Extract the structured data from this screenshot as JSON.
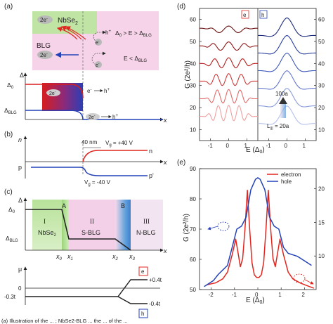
{
  "figure": {
    "panel_labels": {
      "a": "(a)",
      "b": "(b)",
      "c": "(c)",
      "d": "(d)",
      "e": "(e)"
    },
    "caption_fragment": "(a) Illustration of the ... ; NbSe2-BLG ... the ... of the ..."
  },
  "panel_a": {
    "nbse2": "NbSe",
    "nbse2_sub": "2",
    "blg": "BLG",
    "electron": "2e",
    "electron_sup": "-",
    "hole": "h",
    "hole_sup": "+",
    "e_single": "e",
    "e_single_sup": "-",
    "cond_upper": "Δ",
    "cond_upper_sub": "0",
    "cond_upper_rest": " > E > Δ",
    "cond_upper_sub2": "BLG",
    "cond_lower": "E < Δ",
    "cond_lower_sub": "BLG",
    "delta_axis": "Δ",
    "delta0": "Δ",
    "delta0_sub": "0",
    "delta_blg": "Δ",
    "delta_blg_sub": "BLG",
    "x_axis": "x",
    "colors": {
      "nbse2": "#b8e29a",
      "blg": "#f3cde6",
      "arrow_red": "#e0261f",
      "arrow_blue": "#2442b8"
    }
  },
  "panel_b": {
    "n_axis": "n",
    "width_label": "40 nm",
    "vg_pos": "V",
    "vg_pos_sub": "g",
    "vg_pos_rest": " = +40 V",
    "vg_neg": "V",
    "vg_neg_sub": "g",
    "vg_neg_rest": " = -40 V",
    "n_label": "n",
    "p_label": "p",
    "p_prime": "p'",
    "x_axis": "x"
  },
  "panel_c": {
    "delta_axis": "Δ",
    "delta0": "Δ",
    "delta0_sub": "0",
    "delta_blg": "Δ",
    "delta_blg_sub": "BLG",
    "regions": [
      {
        "tag": "A",
        "roman": "",
        "name": ""
      },
      {
        "tag": "",
        "roman": "I",
        "name": "NbSe"
      },
      {
        "tag": "",
        "roman": "II",
        "name": "S-BLG"
      },
      {
        "tag": "B",
        "roman": "",
        "name": ""
      },
      {
        "tag": "",
        "roman": "III",
        "name": "N-BLG"
      }
    ],
    "nbse2_sub": "2",
    "x_ticks": [
      "x",
      "x",
      "x",
      "x"
    ],
    "x_subs": [
      "0",
      "1",
      "2",
      "3"
    ],
    "x_axis": "x",
    "mu_axis": "μ",
    "mu_zero": "0",
    "mu_left": "-0.3t",
    "mu_upper": "+0.4t",
    "mu_lower": "-0.4t",
    "box_e": "e",
    "box_h": "h"
  },
  "panel_d": {
    "ylabel": "G (2e²/h)",
    "xlabel": "E (Δ",
    "xlabel_sub": "0",
    "xlabel_end": ")",
    "legend_e": "e",
    "legend_h": "h",
    "y_ticks": [
      "10",
      "20",
      "30",
      "40",
      "50",
      "60"
    ],
    "y_ticks_right": [
      "10",
      "20",
      "30",
      "40",
      "50",
      "60"
    ],
    "x_ticks": [
      "-1",
      "0",
      "1"
    ],
    "arrow_top": "100a",
    "arrow_bottom": "L",
    "arrow_bottom_sub": "|||",
    "arrow_bottom_rest": " = 20a"
  },
  "chart_data": {
    "type": "line",
    "title": "",
    "xlabel": "E (Δ₀)",
    "ylabel": "G (2e²/h)",
    "xlim": [
      -2.5,
      2.5
    ],
    "ylim": [
      50,
      90
    ],
    "y2lim": [
      5,
      23
    ],
    "x_ticks": [
      -2,
      -1,
      0,
      1,
      2
    ],
    "y_ticks": [
      50,
      60,
      70,
      80,
      90
    ],
    "y2_ticks": [
      10,
      15,
      20
    ],
    "legend": "top-right",
    "series": [
      {
        "name": "electron",
        "color": "#e0261f",
        "x": [
          -2.2,
          -1.8,
          -1.5,
          -1.3,
          -1.1,
          -0.95,
          -0.85,
          -0.75,
          -0.65,
          -0.55,
          -0.45,
          -0.35,
          -0.25,
          -0.15,
          -0.05,
          0.05,
          0.15,
          0.25,
          0.35,
          0.45,
          0.55,
          0.65,
          0.75,
          0.85,
          0.95,
          1.1,
          1.3,
          1.5,
          1.8,
          2.1,
          2.4
        ],
        "y": [
          5.7,
          6.0,
          6.6,
          7.6,
          10.2,
          12.5,
          10.5,
          8.4,
          9.6,
          14.0,
          19.8,
          14.0,
          9.0,
          7.2,
          6.8,
          6.8,
          7.2,
          9.0,
          14.0,
          19.8,
          14.0,
          9.6,
          8.4,
          10.5,
          12.5,
          10.2,
          7.6,
          6.6,
          6.0,
          5.6,
          5.2
        ]
      },
      {
        "name": "hole",
        "color": "#2442b8",
        "x": [
          -2.3,
          -2.1,
          -1.9,
          -1.7,
          -1.5,
          -1.3,
          -1.1,
          -0.9,
          -0.7,
          -0.5,
          -0.3,
          -0.1,
          0.0,
          0.1,
          0.3,
          0.5,
          0.7,
          0.9,
          1.1,
          1.3,
          1.5,
          1.7,
          1.9,
          2.1,
          2.3
        ],
        "y": [
          51,
          52,
          53,
          55,
          56.5,
          58,
          64,
          70,
          71,
          74,
          83,
          86.5,
          87,
          86.5,
          83,
          74,
          71,
          70,
          64,
          62,
          61.5,
          61,
          60,
          59,
          58
        ]
      }
    ]
  },
  "panel_e": {
    "ylabel": "G (2e²/h)",
    "xlabel": "E (Δ",
    "xlabel_sub": "0",
    "xlabel_end": ")",
    "legend_electron": "electron",
    "legend_hole": "hole",
    "y_ticks": [
      "50",
      "60",
      "70",
      "80",
      "90"
    ],
    "y_ticks_right": [
      "10",
      "15",
      "20"
    ],
    "x_ticks": [
      "-2",
      "-1",
      "0",
      "1",
      "2"
    ]
  }
}
